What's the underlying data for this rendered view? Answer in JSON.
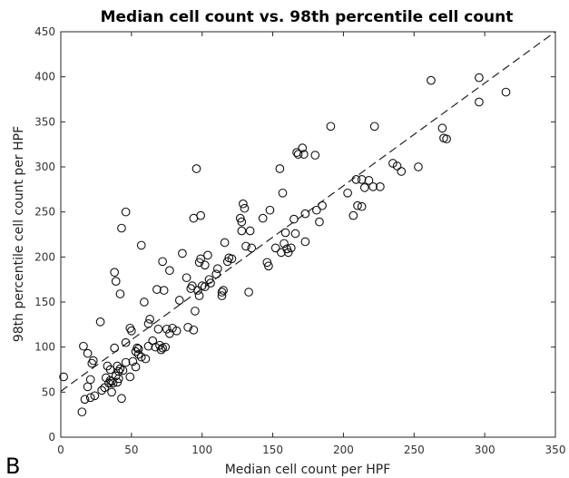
{
  "chart_data": {
    "type": "scatter",
    "title": "Median cell count vs. 98th percentile cell count",
    "xlabel": "Median cell count per HPF",
    "ylabel": "98th percentile cell count per HPF",
    "panel_label": "B",
    "xlim": [
      0,
      350
    ],
    "ylim": [
      0,
      450
    ],
    "xticks": [
      0,
      50,
      100,
      150,
      200,
      250,
      300,
      350
    ],
    "yticks": [
      0,
      50,
      100,
      150,
      200,
      250,
      300,
      350,
      400,
      450
    ],
    "grid": false,
    "marker": "open-circle",
    "fit_line": {
      "style": "dashed",
      "points": [
        [
          0,
          51
        ],
        [
          350,
          450
        ]
      ]
    },
    "points": [
      [
        2,
        67
      ],
      [
        15,
        28
      ],
      [
        16,
        101
      ],
      [
        17,
        42
      ],
      [
        19,
        56
      ],
      [
        19,
        93
      ],
      [
        21,
        64
      ],
      [
        21,
        44
      ],
      [
        22,
        82
      ],
      [
        23,
        85
      ],
      [
        24,
        46
      ],
      [
        28,
        128
      ],
      [
        29,
        52
      ],
      [
        31,
        55
      ],
      [
        32,
        66
      ],
      [
        33,
        79
      ],
      [
        34,
        60
      ],
      [
        35,
        63
      ],
      [
        35,
        75
      ],
      [
        36,
        62
      ],
      [
        36,
        50
      ],
      [
        37,
        60
      ],
      [
        38,
        99
      ],
      [
        38,
        183
      ],
      [
        39,
        68
      ],
      [
        39,
        173
      ],
      [
        40,
        79
      ],
      [
        40,
        61
      ],
      [
        41,
        65
      ],
      [
        41,
        73
      ],
      [
        42,
        159
      ],
      [
        42,
        76
      ],
      [
        43,
        43
      ],
      [
        43,
        232
      ],
      [
        44,
        74
      ],
      [
        46,
        83
      ],
      [
        46,
        105
      ],
      [
        46,
        250
      ],
      [
        49,
        67
      ],
      [
        49,
        121
      ],
      [
        50,
        118
      ],
      [
        51,
        84
      ],
      [
        53,
        95
      ],
      [
        53,
        78
      ],
      [
        54,
        99
      ],
      [
        55,
        98
      ],
      [
        55,
        92
      ],
      [
        57,
        89
      ],
      [
        57,
        213
      ],
      [
        59,
        150
      ],
      [
        60,
        87
      ],
      [
        62,
        126
      ],
      [
        62,
        101
      ],
      [
        63,
        131
      ],
      [
        65,
        107
      ],
      [
        67,
        100
      ],
      [
        68,
        164
      ],
      [
        69,
        120
      ],
      [
        70,
        102
      ],
      [
        71,
        97
      ],
      [
        72,
        99
      ],
      [
        72,
        195
      ],
      [
        73,
        163
      ],
      [
        74,
        100
      ],
      [
        75,
        120
      ],
      [
        77,
        115
      ],
      [
        77,
        185
      ],
      [
        79,
        121
      ],
      [
        82,
        118
      ],
      [
        84,
        152
      ],
      [
        86,
        204
      ],
      [
        89,
        177
      ],
      [
        90,
        122
      ],
      [
        92,
        165
      ],
      [
        93,
        168
      ],
      [
        94,
        119
      ],
      [
        94,
        243
      ],
      [
        95,
        140
      ],
      [
        96,
        298
      ],
      [
        97,
        163
      ],
      [
        98,
        157
      ],
      [
        98,
        194
      ],
      [
        99,
        198
      ],
      [
        99,
        246
      ],
      [
        100,
        168
      ],
      [
        102,
        191
      ],
      [
        102,
        167
      ],
      [
        104,
        202
      ],
      [
        105,
        175
      ],
      [
        106,
        171
      ],
      [
        110,
        181
      ],
      [
        111,
        187
      ],
      [
        114,
        157
      ],
      [
        114,
        161
      ],
      [
        115,
        163
      ],
      [
        116,
        216
      ],
      [
        118,
        195
      ],
      [
        119,
        199
      ],
      [
        121,
        198
      ],
      [
        127,
        243
      ],
      [
        128,
        239
      ],
      [
        128,
        229
      ],
      [
        129,
        259
      ],
      [
        130,
        254
      ],
      [
        131,
        212
      ],
      [
        133,
        161
      ],
      [
        134,
        229
      ],
      [
        135,
        210
      ],
      [
        143,
        243
      ],
      [
        146,
        194
      ],
      [
        147,
        190
      ],
      [
        148,
        252
      ],
      [
        152,
        210
      ],
      [
        155,
        298
      ],
      [
        156,
        205
      ],
      [
        157,
        271
      ],
      [
        158,
        215
      ],
      [
        159,
        227
      ],
      [
        160,
        209
      ],
      [
        161,
        205
      ],
      [
        163,
        210
      ],
      [
        165,
        242
      ],
      [
        166,
        226
      ],
      [
        167,
        316
      ],
      [
        168,
        314
      ],
      [
        171,
        321
      ],
      [
        172,
        314
      ],
      [
        173,
        217
      ],
      [
        173,
        248
      ],
      [
        180,
        313
      ],
      [
        181,
        252
      ],
      [
        183,
        239
      ],
      [
        185,
        257
      ],
      [
        191,
        345
      ],
      [
        203,
        271
      ],
      [
        207,
        246
      ],
      [
        209,
        286
      ],
      [
        210,
        257
      ],
      [
        213,
        256
      ],
      [
        213,
        286
      ],
      [
        215,
        277
      ],
      [
        218,
        285
      ],
      [
        221,
        278
      ],
      [
        222,
        345
      ],
      [
        226,
        278
      ],
      [
        235,
        304
      ],
      [
        238,
        301
      ],
      [
        241,
        295
      ],
      [
        253,
        300
      ],
      [
        262,
        396
      ],
      [
        270,
        343
      ],
      [
        271,
        332
      ],
      [
        273,
        331
      ],
      [
        296,
        372
      ],
      [
        296,
        399
      ],
      [
        315,
        383
      ]
    ]
  }
}
